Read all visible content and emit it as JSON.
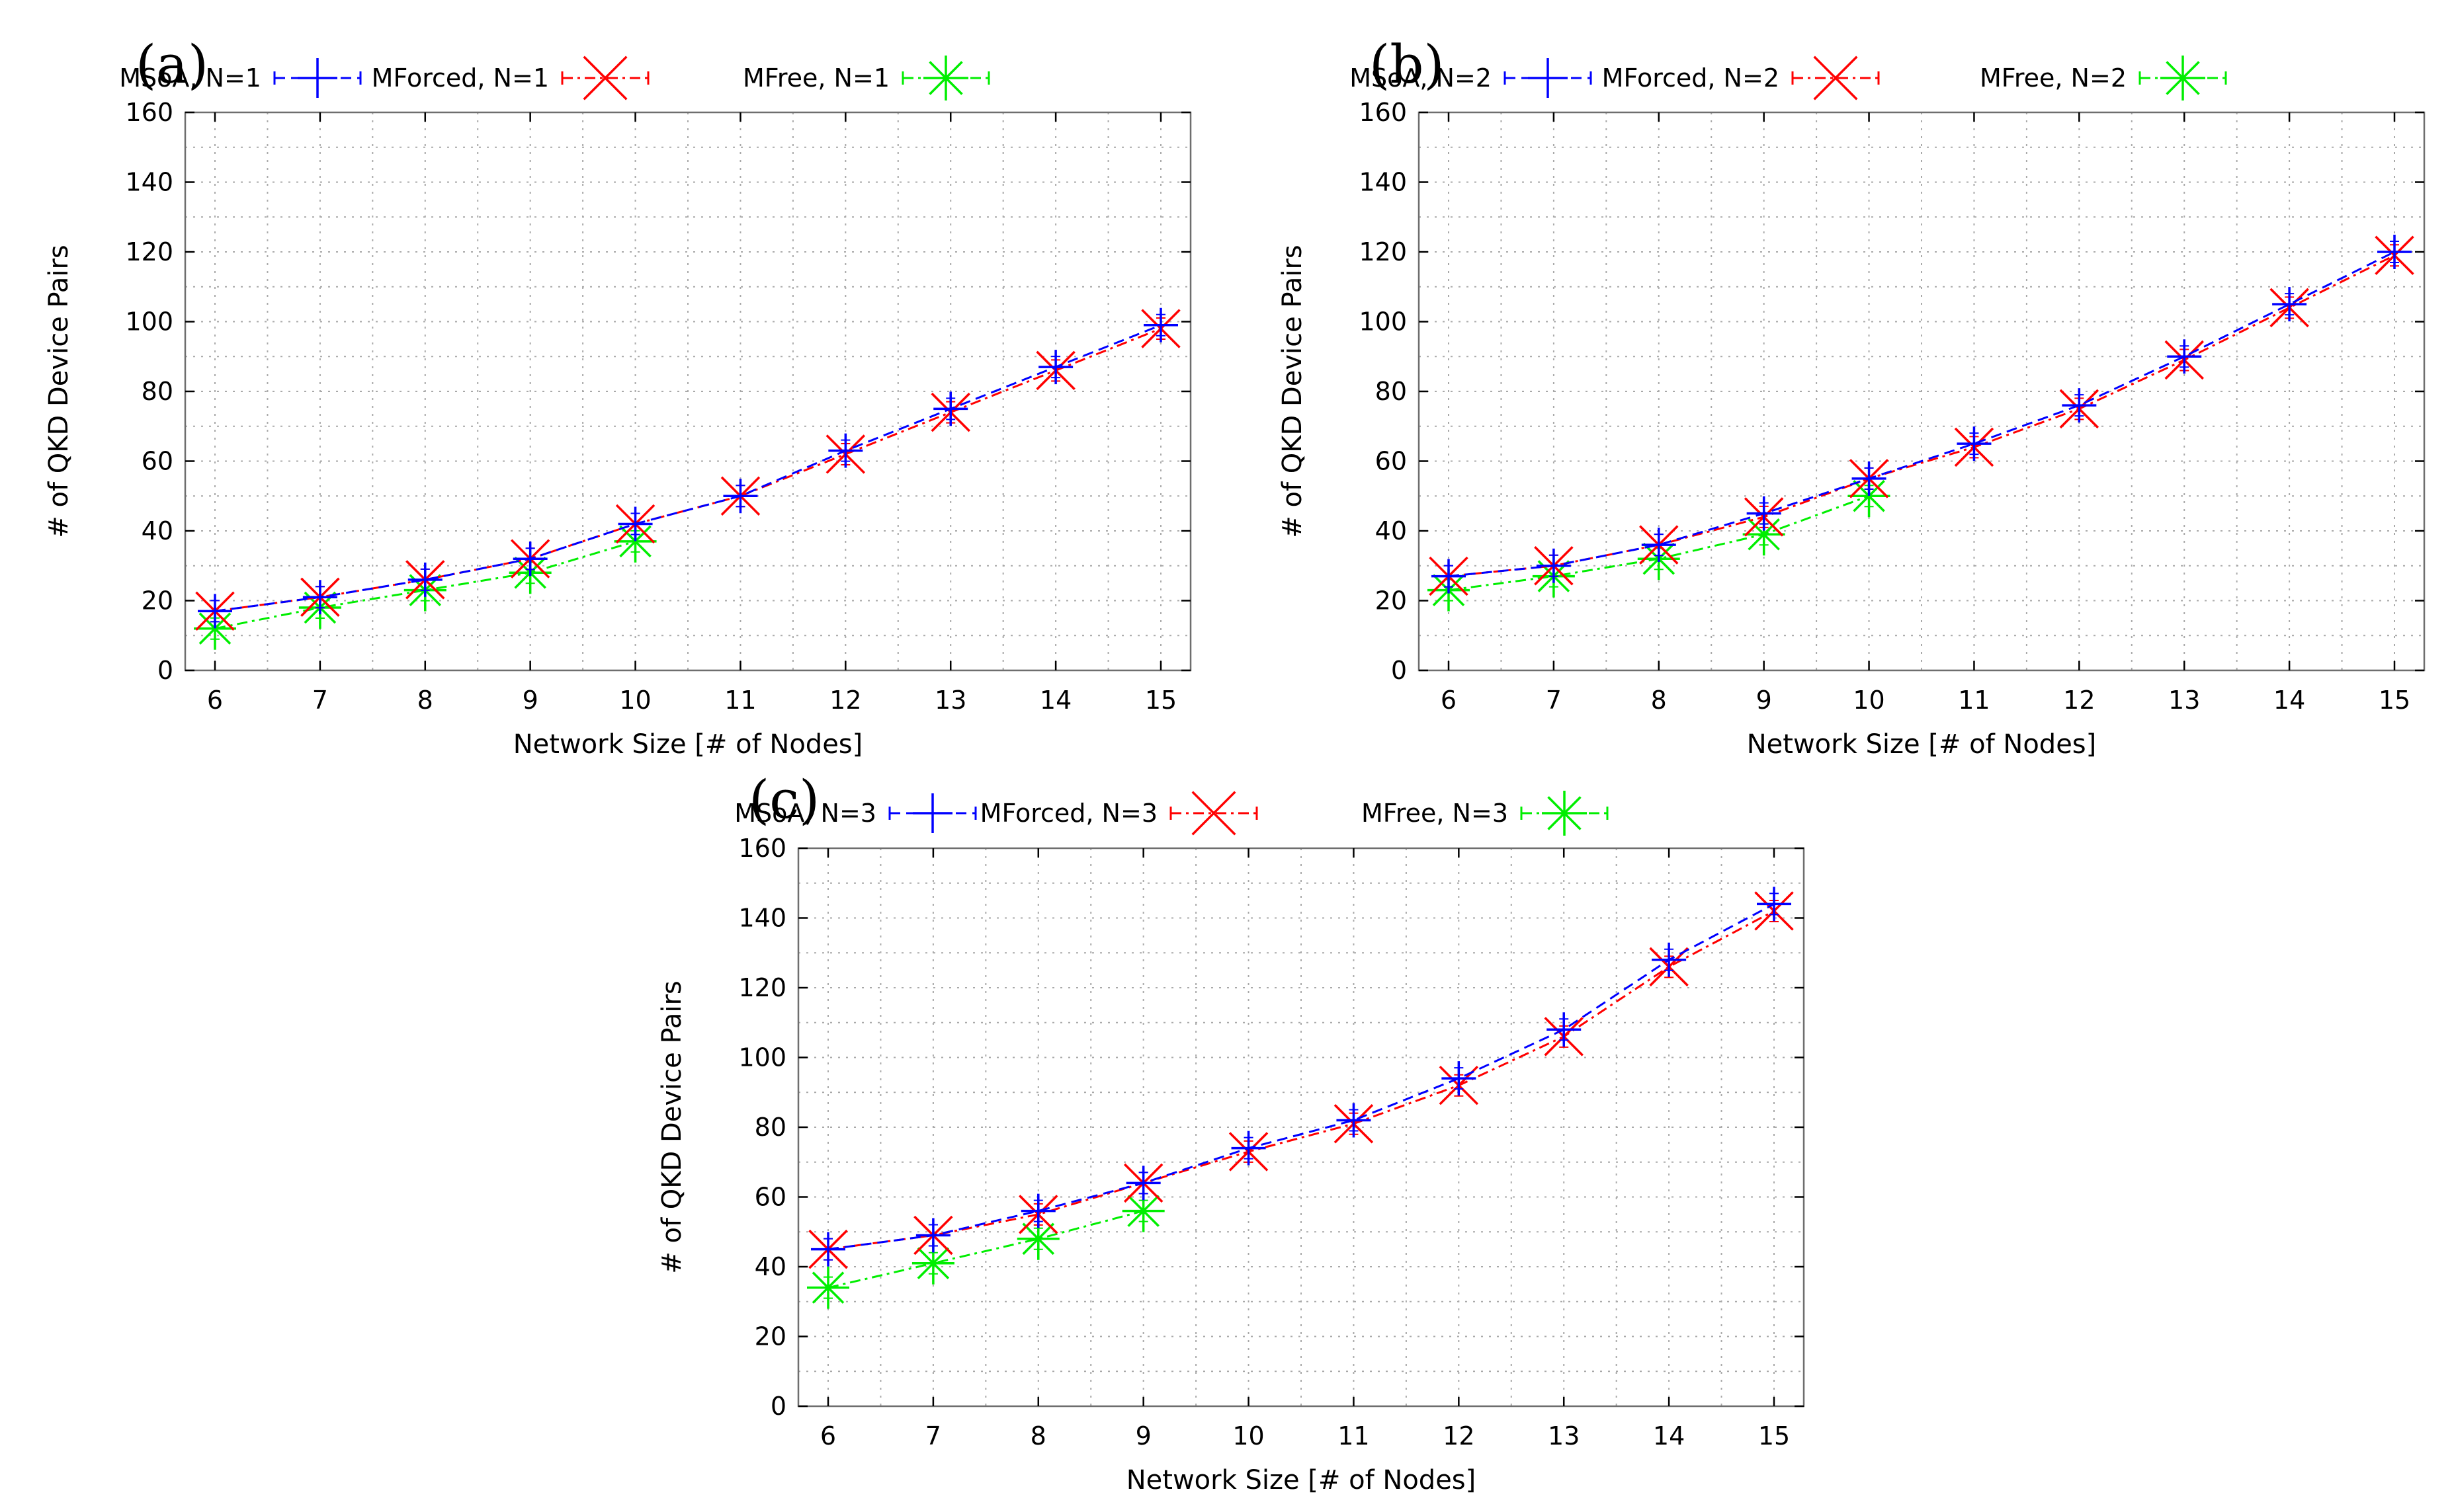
{
  "chart_data": [
    {
      "type": "line",
      "panel_label": "(a)",
      "title": "",
      "xlabel": "Network Size [# of Nodes]",
      "ylabel": "# of QKD Device Pairs",
      "x": [
        6,
        7,
        8,
        9,
        10,
        11,
        12,
        13,
        14,
        15
      ],
      "xticks": [
        "6",
        "7",
        "8",
        "9",
        "10",
        "11",
        "12",
        "13",
        "14",
        "15"
      ],
      "ylim": [
        0,
        160
      ],
      "yticks": [
        "0",
        "20",
        "40",
        "60",
        "80",
        "100",
        "120",
        "140",
        "160"
      ],
      "grid": true,
      "legend": "top",
      "series": [
        {
          "name": "MSoA, N=1",
          "color": "#0000ff",
          "marker": "plus",
          "dash": "dashed",
          "values": [
            17,
            21,
            26,
            32,
            42,
            50,
            63,
            75,
            87,
            99
          ]
        },
        {
          "name": "MForced, N=1",
          "color": "#ff0000",
          "marker": "cross",
          "dash": "dash-dot",
          "values": [
            17,
            21,
            26,
            32,
            42,
            50,
            62,
            74,
            86,
            98
          ]
        },
        {
          "name": "MFree, N=1",
          "color": "#00ee00",
          "marker": "star",
          "dash": "dash-dot",
          "values": [
            12,
            18,
            23,
            28,
            37,
            null,
            null,
            null,
            null,
            null
          ]
        }
      ]
    },
    {
      "type": "line",
      "panel_label": "(b)",
      "title": "",
      "xlabel": "Network Size [# of Nodes]",
      "ylabel": "# of QKD Device Pairs",
      "x": [
        6,
        7,
        8,
        9,
        10,
        11,
        12,
        13,
        14,
        15
      ],
      "xticks": [
        "6",
        "7",
        "8",
        "9",
        "10",
        "11",
        "12",
        "13",
        "14",
        "15"
      ],
      "ylim": [
        0,
        160
      ],
      "yticks": [
        "0",
        "20",
        "40",
        "60",
        "80",
        "100",
        "120",
        "140",
        "160"
      ],
      "grid": true,
      "legend": "top",
      "series": [
        {
          "name": "MSoA, N=2",
          "color": "#0000ff",
          "marker": "plus",
          "dash": "dashed",
          "values": [
            27,
            30,
            36,
            45,
            55,
            65,
            76,
            90,
            105,
            120
          ]
        },
        {
          "name": "MForced, N=2",
          "color": "#ff0000",
          "marker": "cross",
          "dash": "dash-dot",
          "values": [
            27,
            30,
            36,
            44,
            55,
            64,
            75,
            89,
            104,
            119
          ]
        },
        {
          "name": "MFree, N=2",
          "color": "#00ee00",
          "marker": "star",
          "dash": "dash-dot",
          "values": [
            23,
            27,
            32,
            39,
            50,
            null,
            null,
            null,
            null,
            null
          ]
        }
      ]
    },
    {
      "type": "line",
      "panel_label": "(c)",
      "title": "",
      "xlabel": "Network Size [# of Nodes]",
      "ylabel": "# of QKD Device Pairs",
      "x": [
        6,
        7,
        8,
        9,
        10,
        11,
        12,
        13,
        14,
        15
      ],
      "xticks": [
        "6",
        "7",
        "8",
        "9",
        "10",
        "11",
        "12",
        "13",
        "14",
        "15"
      ],
      "ylim": [
        0,
        160
      ],
      "yticks": [
        "0",
        "20",
        "40",
        "60",
        "80",
        "100",
        "120",
        "140",
        "160"
      ],
      "grid": true,
      "legend": "top",
      "series": [
        {
          "name": "MSoA, N=3",
          "color": "#0000ff",
          "marker": "plus",
          "dash": "dashed",
          "values": [
            45,
            49,
            56,
            64,
            74,
            82,
            94,
            108,
            128,
            144
          ]
        },
        {
          "name": "MForced, N=3",
          "color": "#ff0000",
          "marker": "cross",
          "dash": "dash-dot",
          "values": [
            45,
            49,
            55,
            64,
            73,
            81,
            92,
            106,
            126,
            142
          ]
        },
        {
          "name": "MFree, N=3",
          "color": "#00ee00",
          "marker": "star",
          "dash": "dash-dot",
          "values": [
            34,
            41,
            48,
            56,
            null,
            null,
            null,
            null,
            null,
            null
          ]
        }
      ]
    }
  ]
}
